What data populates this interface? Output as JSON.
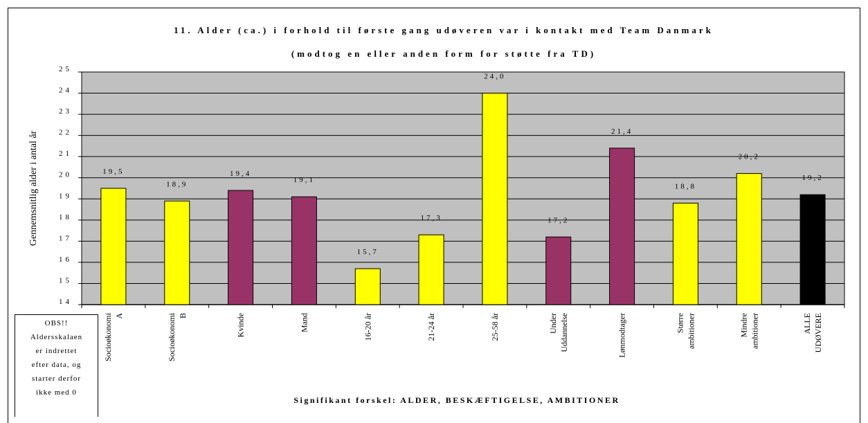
{
  "chart_data": {
    "type": "bar",
    "title_line1": "11. Alder (ca.) i forhold til første gang udøveren var i kontakt med Team Danmark",
    "title_line2": "(modtog en eller anden form for støtte fra TD)",
    "ylabel": "Gennemsnitlig alder i antal år",
    "xlabel": "Signifikant forskel: ALDER, BESKÆFTIGELSE, AMBITIONER",
    "ylim": [
      14,
      25
    ],
    "yticks": [
      14,
      15,
      16,
      17,
      18,
      19,
      20,
      21,
      22,
      23,
      24,
      25
    ],
    "grid": true,
    "categories": [
      [
        "Socioøkonomi",
        "A"
      ],
      [
        "Socioøkonomi",
        "B"
      ],
      [
        "Kvinde"
      ],
      [
        "Mand"
      ],
      [
        "16-20 år"
      ],
      [
        "21-24 år"
      ],
      [
        "25-58 år"
      ],
      [
        "Under",
        "Uddannelse"
      ],
      [
        "Lønmodtager"
      ],
      [
        "Større",
        "ambitioner"
      ],
      [
        "Mindre",
        "ambitioner"
      ],
      [
        "ALLE",
        "UDØVERE"
      ]
    ],
    "values": [
      19.5,
      18.9,
      19.4,
      19.1,
      15.7,
      17.3,
      24.0,
      17.2,
      21.4,
      18.8,
      20.2,
      19.2
    ],
    "labels": [
      "19,5",
      "18,9",
      "19,4",
      "19,1",
      "15,7",
      "17,3",
      "24,0",
      "17,2",
      "21,4",
      "18,8",
      "20,2",
      "19,2"
    ],
    "bar_colors": [
      "#ffff00",
      "#ffff00",
      "#993366",
      "#993366",
      "#ffff00",
      "#ffff00",
      "#ffff00",
      "#993366",
      "#993366",
      "#ffff00",
      "#ffff00",
      "#000000"
    ],
    "plot_background": "#c0c0c0"
  },
  "note": {
    "lines": [
      "OBS!!",
      "Aldersskalaen",
      "er indrettet",
      "efter data, og",
      "starter derfor",
      "ikke med 0"
    ]
  }
}
